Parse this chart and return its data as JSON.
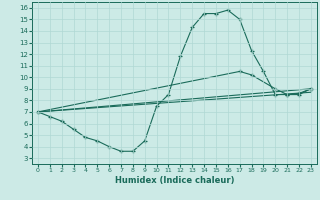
{
  "xlabel": "Humidex (Indice chaleur)",
  "background_color": "#cceae6",
  "grid_color": "#b0d8d4",
  "line_color": "#1a6b5a",
  "xlim": [
    -0.5,
    23.5
  ],
  "ylim": [
    2.5,
    16.5
  ],
  "yticks": [
    3,
    4,
    5,
    6,
    7,
    8,
    9,
    10,
    11,
    12,
    13,
    14,
    15,
    16
  ],
  "xticks": [
    0,
    1,
    2,
    3,
    4,
    5,
    6,
    7,
    8,
    9,
    10,
    11,
    12,
    13,
    14,
    15,
    16,
    17,
    18,
    19,
    20,
    21,
    22,
    23
  ],
  "line1_x": [
    0,
    1,
    2,
    3,
    4,
    5,
    6,
    7,
    8,
    9,
    10,
    11,
    12,
    13,
    14,
    15,
    16,
    17,
    18,
    19,
    20,
    21,
    22,
    23
  ],
  "line1_y": [
    7.0,
    6.6,
    6.2,
    5.5,
    4.8,
    4.5,
    4.0,
    3.6,
    3.6,
    4.5,
    7.5,
    8.5,
    11.8,
    14.3,
    15.5,
    15.5,
    15.8,
    15.0,
    12.3,
    10.5,
    8.5,
    8.5,
    8.6,
    9.0
  ],
  "line2_x": [
    0,
    23
  ],
  "line2_y": [
    7.0,
    9.0
  ],
  "line3_x": [
    0,
    17,
    18,
    20,
    21,
    22,
    23
  ],
  "line3_y": [
    7.0,
    10.5,
    10.2,
    9.0,
    8.5,
    8.5,
    9.0
  ],
  "line4_x": [
    0,
    23
  ],
  "line4_y": [
    7.0,
    8.7
  ]
}
